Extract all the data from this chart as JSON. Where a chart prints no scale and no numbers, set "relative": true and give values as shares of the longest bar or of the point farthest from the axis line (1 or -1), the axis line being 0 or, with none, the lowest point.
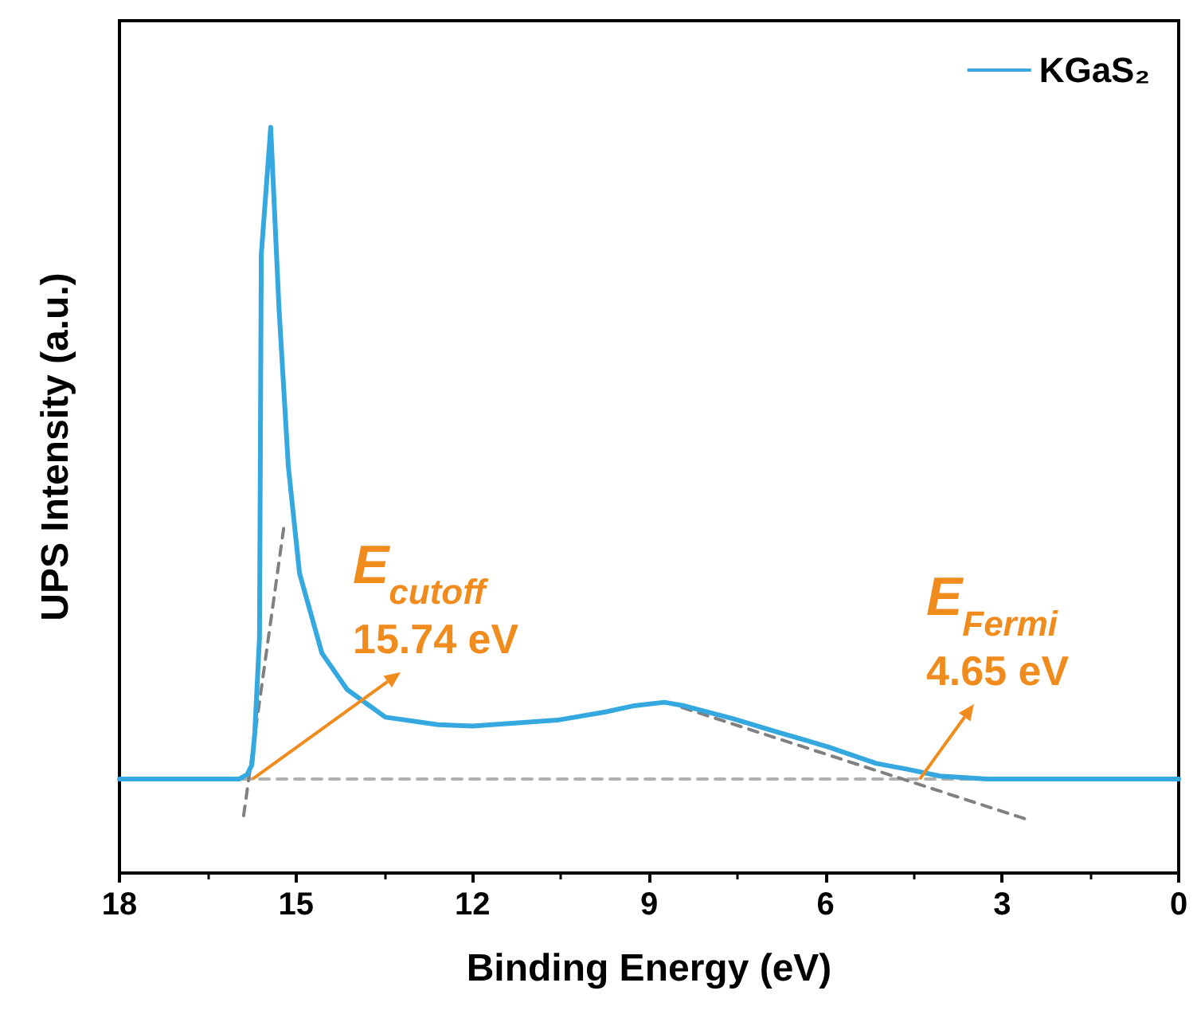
{
  "chart_data": {
    "type": "line",
    "relative": true,
    "xlabel": "Binding Energy (eV)",
    "ylabel": "UPS Intensity (a.u.)",
    "xlim": [
      18,
      0
    ],
    "xticks": [
      18,
      15,
      12,
      9,
      6,
      3,
      0
    ],
    "legend": "top right",
    "grid": false,
    "marker": "none",
    "series": [
      {
        "name": "KGaS₂",
        "color": "#35a8e0",
        "line_style": "solid",
        "x": [
          18,
          15.97,
          15.83,
          15.75,
          15.7,
          15.62,
          15.59,
          15.43,
          15.29,
          15.13,
          14.94,
          14.56,
          14.13,
          13.48,
          12.59,
          12,
          10.56,
          9.74,
          9.28,
          8.74,
          8.39,
          7.58,
          6.77,
          5.95,
          5.14,
          4.6,
          4.06,
          3.25,
          0
        ],
        "values": [
          0.126,
          0.126,
          0.132,
          0.145,
          0.188,
          0.316,
          0.829,
          1,
          0.759,
          0.545,
          0.402,
          0.295,
          0.246,
          0.209,
          0.199,
          0.197,
          0.205,
          0.216,
          0.224,
          0.229,
          0.224,
          0.207,
          0.188,
          0.169,
          0.147,
          0.139,
          0.13,
          0.126,
          0.126
        ]
      },
      {
        "color": "#b0b0b0",
        "line_style": "dashed",
        "x": [
          18,
          0
        ],
        "values": [
          0.126,
          0.126
        ]
      },
      {
        "color": "#808080",
        "line_style": "dashed",
        "x": [
          15.89,
          15.21
        ],
        "values": [
          0.077,
          0.462
        ]
      },
      {
        "color": "#808080",
        "line_style": "dashed",
        "x": [
          8.44,
          2.62
        ],
        "values": [
          0.222,
          0.073
        ]
      }
    ],
    "annotations": [
      {
        "text": "E$_{cutoff}$\n15.74 eV",
        "x": 15.74,
        "y": 0.126
      },
      {
        "text": "E$_{Fermi}$\n4.65 eV",
        "x": 4.4,
        "y": 0.126
      }
    ]
  }
}
